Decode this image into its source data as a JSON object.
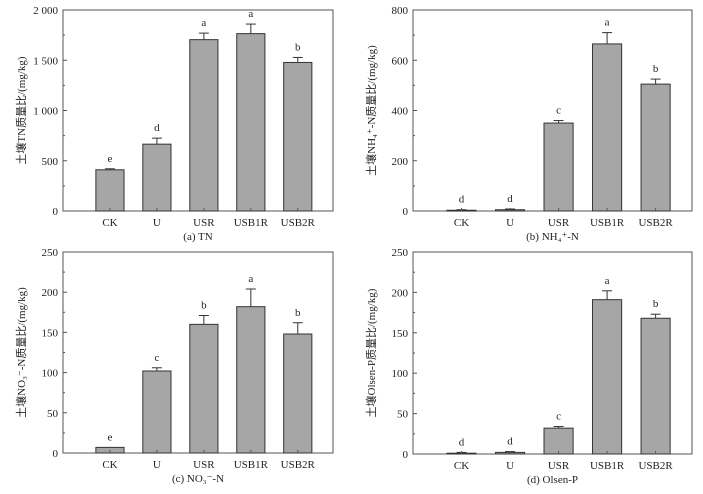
{
  "chart_data": [
    {
      "type": "bar",
      "caption": "(a) TN",
      "ylabel": "土壤TN质量比/(mg/kg)",
      "categories": [
        "CK",
        "U",
        "USR",
        "USB1R",
        "USB2R"
      ],
      "values": [
        410,
        665,
        1705,
        1765,
        1478
      ],
      "errors": [
        10,
        60,
        65,
        95,
        50
      ],
      "letters": [
        "e",
        "d",
        "a",
        "a",
        "b"
      ],
      "ylim": [
        0,
        2000
      ],
      "yticks": [
        0,
        500,
        1000,
        1500,
        2000
      ],
      "ytick_labels": [
        "0",
        "500",
        "1 000",
        "1 500",
        "2 000"
      ],
      "grid": false
    },
    {
      "type": "bar",
      "caption": "(b) NH₄⁺-N",
      "ylabel": "土壤NH₄⁺-N质量比/(mg/kg)",
      "categories": [
        "CK",
        "U",
        "USR",
        "USB1R",
        "USB2R"
      ],
      "values": [
        3,
        5,
        350,
        665,
        505
      ],
      "errors": [
        2,
        3,
        10,
        45,
        20
      ],
      "letters": [
        "d",
        "d",
        "c",
        "a",
        "b"
      ],
      "ylim": [
        0,
        800
      ],
      "yticks": [
        0,
        200,
        400,
        600,
        800
      ],
      "ytick_labels": [
        "0",
        "200",
        "400",
        "600",
        "800"
      ],
      "grid": false
    },
    {
      "type": "bar",
      "caption": "(c) NO₃⁻-N",
      "ylabel": "土壤NO₃⁻-N质量比/(mg/kg)",
      "categories": [
        "CK",
        "U",
        "USR",
        "USB1R",
        "USB2R"
      ],
      "values": [
        7,
        102,
        160,
        182,
        148
      ],
      "errors": [
        0,
        4,
        11,
        22,
        14
      ],
      "letters": [
        "e",
        "c",
        "b",
        "a",
        "b"
      ],
      "ylim": [
        0,
        250
      ],
      "yticks": [
        0,
        50,
        100,
        150,
        200,
        250
      ],
      "ytick_labels": [
        "0",
        "50",
        "100",
        "150",
        "200",
        "250"
      ],
      "grid": false
    },
    {
      "type": "bar",
      "caption": "(d) Olsen-P",
      "ylabel": "土壤Olsen-P质量比/(mg/kg)",
      "categories": [
        "CK",
        "U",
        "USR",
        "USB1R",
        "USB2R"
      ],
      "values": [
        1,
        2,
        32,
        191,
        168
      ],
      "errors": [
        1,
        1,
        2,
        11,
        5
      ],
      "letters": [
        "d",
        "d",
        "c",
        "a",
        "b"
      ],
      "ylim": [
        0,
        250
      ],
      "yticks": [
        0,
        50,
        100,
        150,
        200,
        250
      ],
      "ytick_labels": [
        "0",
        "50",
        "100",
        "150",
        "200",
        "250"
      ],
      "grid": false
    }
  ],
  "colors": {
    "bar": "#a6a6a6",
    "bar_edge": "#333333",
    "axis": "#555555"
  }
}
